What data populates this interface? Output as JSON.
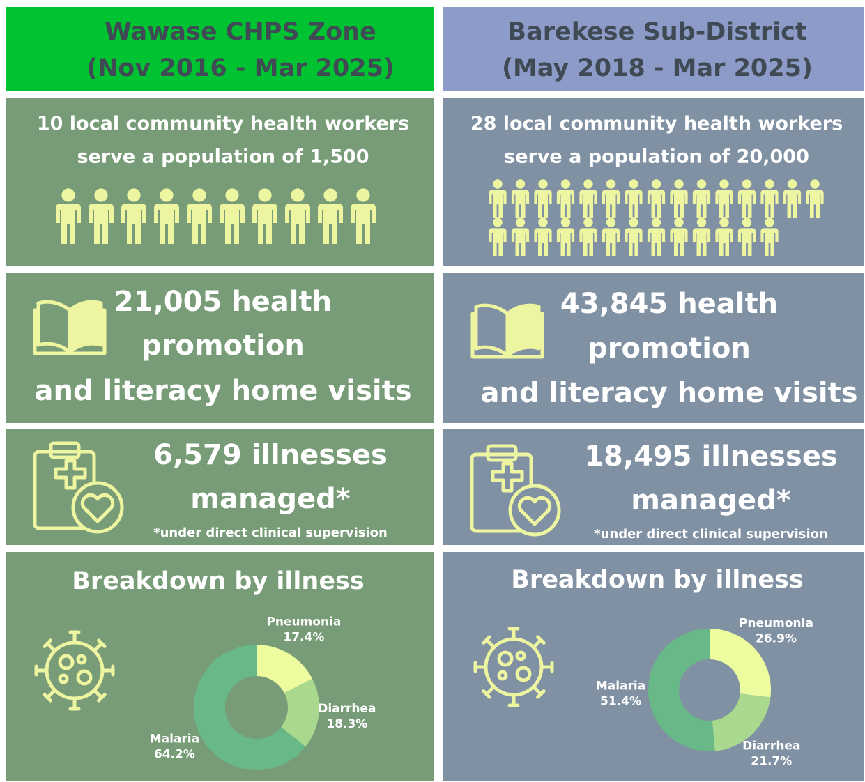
{
  "panels": [
    {
      "title_lines": [
        "Wawase CHPS Zone",
        "(Nov 2016 - Mar 2025)"
      ],
      "worker_count": 10,
      "workers_line1_rest": "local community health workers",
      "workers_line2": "serve a population of 1,500",
      "visits_lines": [
        "21,005 health",
        "promotion",
        "and literacy home visits"
      ],
      "illness_lines": [
        "6,579 illnesses",
        "managed*"
      ],
      "footnote": "*under direct clinical supervision",
      "breakdown_title": "Breakdown by illness",
      "header_color": "#00c332",
      "panel_color": "#789c78"
    },
    {
      "title_lines": [
        "Barekese Sub-District",
        "(May 2018 - Mar 2025)"
      ],
      "worker_count": 28,
      "workers_line1_rest": "local community health workers",
      "workers_line2": "serve a population of 20,000",
      "visits_lines": [
        "43,845 health",
        "promotion",
        "and literacy home visits"
      ],
      "illness_lines": [
        "18,495 illnesses",
        "managed*"
      ],
      "footnote": "*under direct clinical supervision",
      "breakdown_title": "Breakdown by illness",
      "header_color": "#8c9bc8",
      "panel_color": "#8091a3"
    }
  ],
  "chart_data": [
    {
      "type": "pie",
      "categories": [
        "Pneumonia",
        "Diarrhea",
        "Malaria"
      ],
      "values": [
        17.4,
        18.3,
        64.2
      ],
      "value_labels": [
        "17.4%",
        "18.3%",
        "64.2%"
      ],
      "colors": [
        "#eefca0",
        "#a8d98e",
        "#68b888"
      ]
    },
    {
      "type": "pie",
      "categories": [
        "Pneumonia",
        "Diarrhea",
        "Malaria"
      ],
      "values": [
        26.9,
        21.7,
        51.4
      ],
      "value_labels": [
        "26.9%",
        "21.7%",
        "51.4%"
      ],
      "colors": [
        "#eefca0",
        "#a8d98e",
        "#68b888"
      ]
    }
  ]
}
